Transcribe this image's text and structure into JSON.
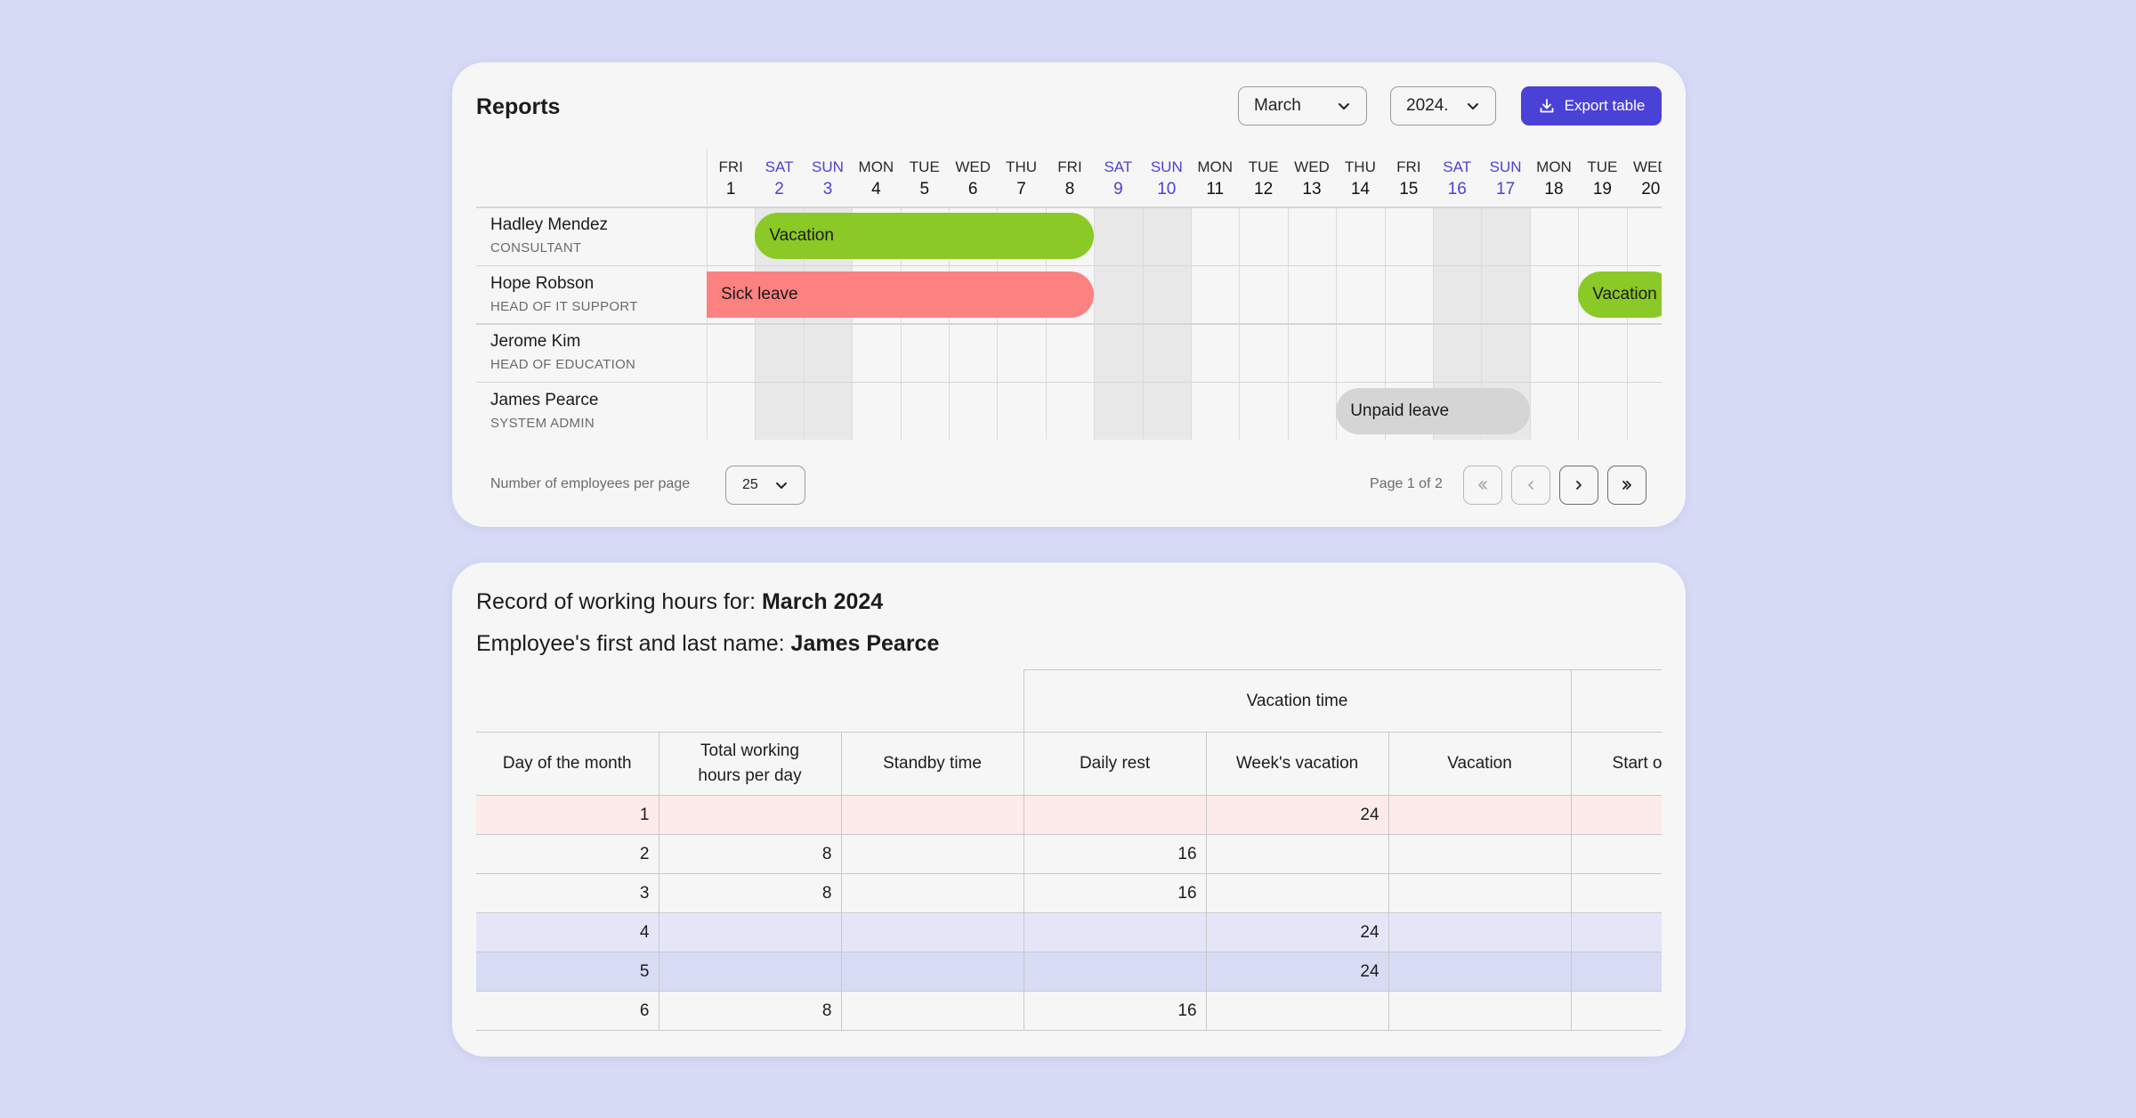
{
  "reports": {
    "title": "Reports",
    "month": "March",
    "year": "2024.",
    "export_label": "Export table",
    "days": [
      {
        "name": "FRI",
        "num": "1"
      },
      {
        "name": "SAT",
        "num": "2"
      },
      {
        "name": "SUN",
        "num": "3"
      },
      {
        "name": "MON",
        "num": "4"
      },
      {
        "name": "TUE",
        "num": "5"
      },
      {
        "name": "WED",
        "num": "6"
      },
      {
        "name": "THU",
        "num": "7"
      },
      {
        "name": "FRI",
        "num": "8"
      },
      {
        "name": "SAT",
        "num": "9"
      },
      {
        "name": "SUN",
        "num": "10"
      },
      {
        "name": "MON",
        "num": "11"
      },
      {
        "name": "TUE",
        "num": "12"
      },
      {
        "name": "WED",
        "num": "13"
      },
      {
        "name": "THU",
        "num": "14"
      },
      {
        "name": "FRI",
        "num": "15"
      },
      {
        "name": "SAT",
        "num": "16"
      },
      {
        "name": "SUN",
        "num": "17"
      },
      {
        "name": "MON",
        "num": "18"
      },
      {
        "name": "TUE",
        "num": "19"
      },
      {
        "name": "WED",
        "num": "20"
      }
    ],
    "employees": [
      {
        "name": "Hadley Mendez",
        "role": "CONSULTANT"
      },
      {
        "name": "Hope Robson",
        "role": "HEAD OF IT SUPPORT"
      },
      {
        "name": "Jerome Kim",
        "role": "HEAD OF EDUCATION"
      },
      {
        "name": "James Pearce",
        "role": "SYSTEM ADMIN"
      }
    ],
    "absences": [
      {
        "label": "Vacation",
        "row": 0,
        "start": 2,
        "end": 8,
        "kind": "vacation"
      },
      {
        "label": "Sick leave",
        "row": 1,
        "start": 1,
        "end": 8,
        "kind": "sick"
      },
      {
        "label": "Vacation",
        "row": 1,
        "start": 19,
        "end": 20,
        "kind": "vacation"
      },
      {
        "label": "Unpaid leave",
        "row": 3,
        "start": 14,
        "end": 17,
        "kind": "unpaid"
      }
    ],
    "per_page_label": "Number of employees per page",
    "per_page_value": "25",
    "page_label": "Page 1 of 2"
  },
  "record": {
    "hours_prefix": "Record of working hours for: ",
    "hours_period": "March 2024",
    "employee_prefix": "Employee's first and last name: ",
    "employee_name": "James Pearce",
    "group_header": "Vacation time",
    "columns": [
      "Day of the month",
      "Total working hours per day",
      "Standby time",
      "Daily rest",
      "Week's vacation",
      "Vacation",
      "Start of"
    ],
    "rows": [
      [
        "1",
        "",
        "",
        "",
        "24",
        "",
        ""
      ],
      [
        "2",
        "8",
        "",
        "16",
        "",
        "",
        ""
      ],
      [
        "3",
        "8",
        "",
        "16",
        "",
        "",
        ""
      ],
      [
        "4",
        "",
        "",
        "",
        "24",
        "",
        ""
      ],
      [
        "5",
        "",
        "",
        "",
        "24",
        "",
        ""
      ],
      [
        "6",
        "8",
        "",
        "16",
        "",
        "",
        ""
      ]
    ]
  }
}
